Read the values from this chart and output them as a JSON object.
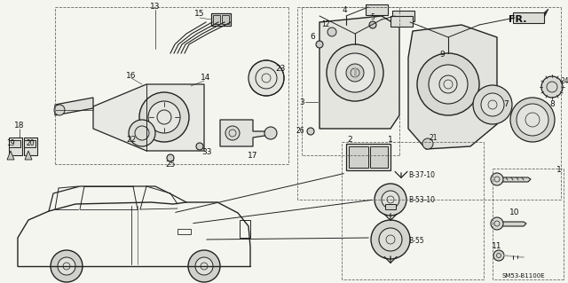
{
  "fig_width": 6.4,
  "fig_height": 3.19,
  "dpi": 100,
  "bg": "#f5f5f0",
  "lc": "#222222",
  "tc": "#111111",
  "ref_code": "SM53-B1100E",
  "fs_label": 6.5,
  "fs_small": 5.5,
  "fs_ref": 5.0,
  "fr_label": "FR.",
  "bolt_labels": [
    "B-37-10",
    "B-53-10",
    "B-55"
  ],
  "part_numbers_left": [
    "13",
    "15",
    "16",
    "14",
    "22",
    "17",
    "33",
    "25",
    "18",
    "19",
    "20",
    "23"
  ],
  "part_numbers_right": [
    "4",
    "12",
    "6",
    "5",
    "3",
    "26",
    "2",
    "1",
    "9",
    "7",
    "8",
    "21",
    "24",
    "10",
    "11"
  ]
}
